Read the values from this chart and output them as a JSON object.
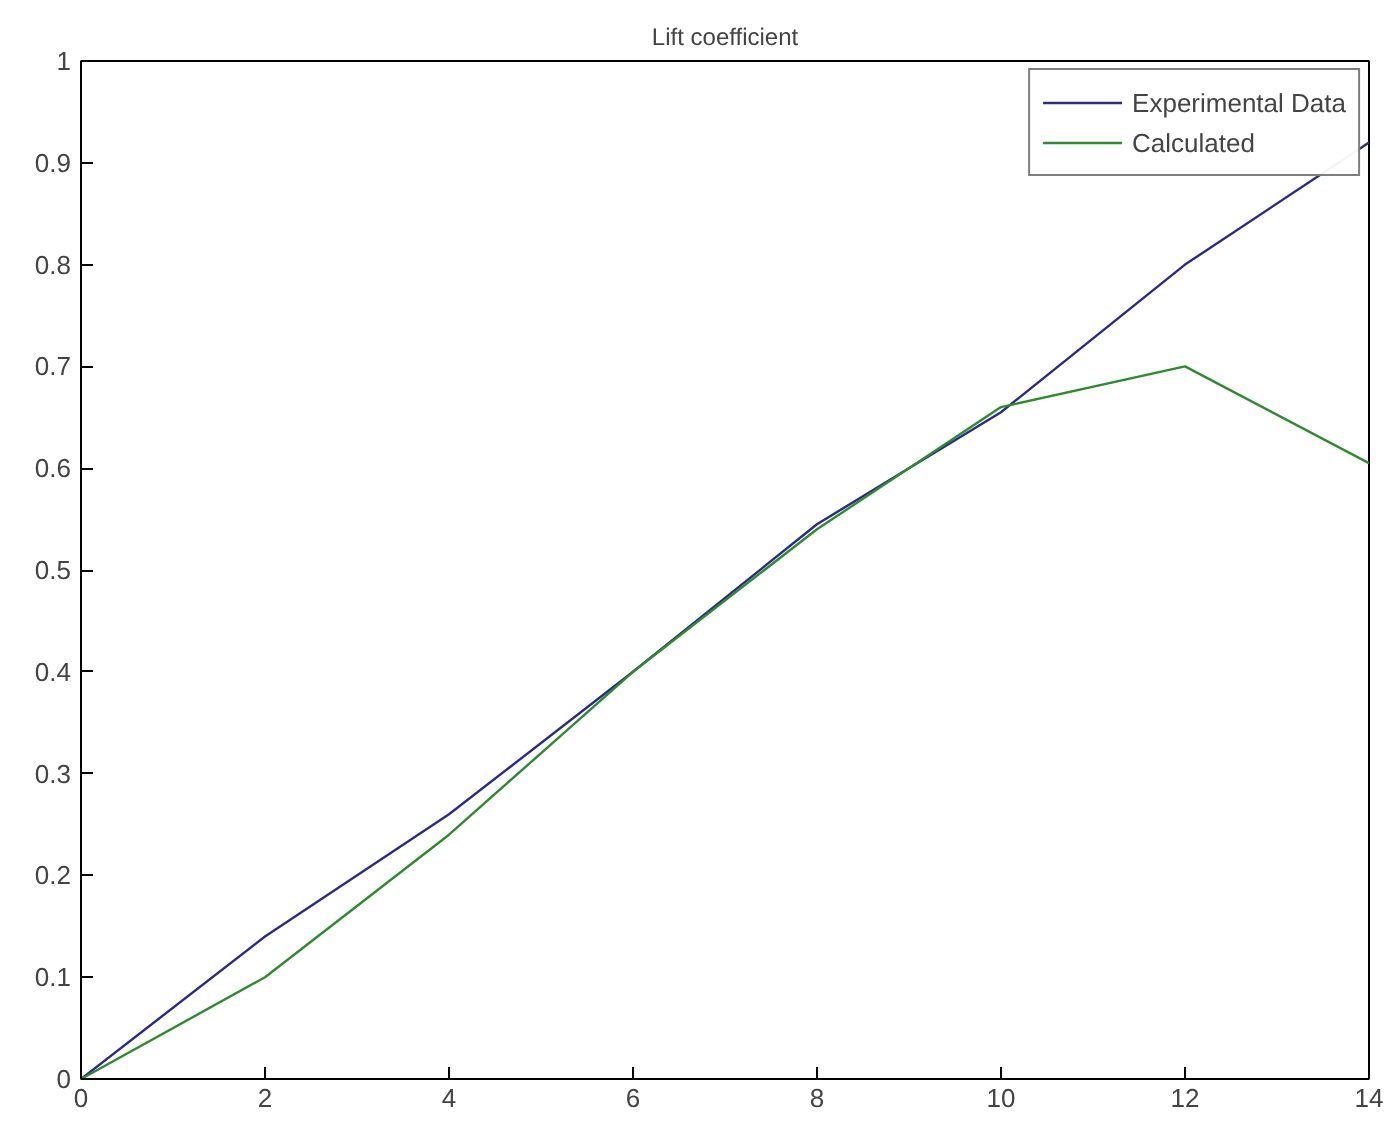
{
  "chart_data": {
    "type": "line",
    "title": "Lift coefficient",
    "x": [
      0,
      2,
      4,
      6,
      8,
      10,
      12,
      14
    ],
    "series": [
      {
        "name": "Experimental Data",
        "color": "#2a2a8c",
        "values": [
          0,
          0.14,
          0.26,
          0.4,
          0.545,
          0.655,
          0.8,
          0.92
        ]
      },
      {
        "name": "Calculated",
        "color": "#2e8b2e",
        "values": [
          0,
          0.1,
          0.24,
          0.4,
          0.54,
          0.66,
          0.7,
          0.605
        ]
      }
    ],
    "xlim": [
      0,
      14
    ],
    "ylim": [
      0,
      1
    ],
    "xticks": [
      0,
      2,
      4,
      6,
      8,
      10,
      12,
      14
    ],
    "yticks": [
      0,
      0.1,
      0.2,
      0.3,
      0.4,
      0.5,
      0.6,
      0.7,
      0.8,
      0.9,
      1
    ],
    "grid": false,
    "legend": "top right",
    "marker": "none",
    "line_style": "solid"
  }
}
